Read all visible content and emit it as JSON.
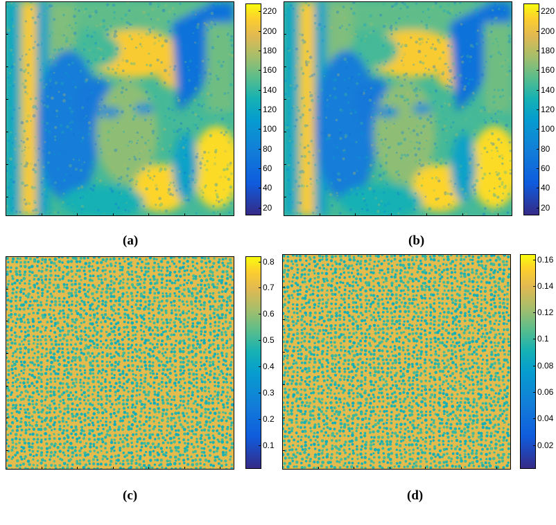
{
  "panels": [
    {
      "label": "(a)",
      "kind": "portrait",
      "colorbar": {
        "ticks": [
          "20",
          "40",
          "60",
          "80",
          "100",
          "120",
          "140",
          "160",
          "180",
          "200",
          "220"
        ],
        "min": 12,
        "max": 228
      }
    },
    {
      "label": "(b)",
      "kind": "portrait",
      "colorbar": {
        "ticks": [
          "20",
          "40",
          "60",
          "80",
          "100",
          "120",
          "140",
          "160",
          "180",
          "200",
          "220"
        ],
        "min": 12,
        "max": 228
      }
    },
    {
      "label": "(c)",
      "kind": "noise",
      "colorbar": {
        "ticks": [
          "0.1",
          "0.2",
          "0.3",
          "0.4",
          "0.5",
          "0.6",
          "0.7",
          "0.8"
        ],
        "min": 0.01,
        "max": 0.82
      }
    },
    {
      "label": "(d)",
      "kind": "noise",
      "colorbar": {
        "ticks": [
          "0.02",
          "0.04",
          "0.06",
          "0.08",
          "0.1",
          "0.12",
          "0.14",
          "0.16"
        ],
        "min": 0.002,
        "max": 0.164
      }
    }
  ],
  "colormap": "parula",
  "colors": {
    "low": "#352a87",
    "mid": "#1fa7c4",
    "high": "#f9fb0e"
  }
}
